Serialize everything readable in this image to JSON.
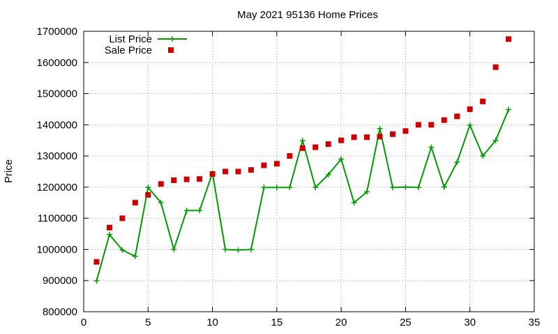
{
  "chart_data": {
    "type": "line",
    "title": "May 2021 95136 Home Prices",
    "xlabel": "",
    "ylabel": "Price",
    "xlim": [
      0,
      35
    ],
    "ylim": [
      800000,
      1700000
    ],
    "x_ticks": [
      0,
      5,
      10,
      15,
      20,
      25,
      30,
      35
    ],
    "y_ticks": [
      800000,
      900000,
      1000000,
      1100000,
      1200000,
      1300000,
      1400000,
      1500000,
      1600000,
      1700000
    ],
    "grid": true,
    "legend_position": "top-left",
    "x": [
      1,
      2,
      3,
      4,
      5,
      6,
      7,
      8,
      9,
      10,
      11,
      12,
      13,
      14,
      15,
      16,
      17,
      18,
      19,
      20,
      21,
      22,
      23,
      24,
      25,
      26,
      27,
      28,
      29,
      30,
      31,
      32,
      33
    ],
    "series": [
      {
        "name": "List Price",
        "kind": "line-points",
        "color": "#009900",
        "marker": "plus",
        "values": [
          899000,
          1048000,
          998000,
          978000,
          1199000,
          1150000,
          1000000,
          1125000,
          1125000,
          1245000,
          1000000,
          998000,
          1000000,
          1199000,
          1199000,
          1199000,
          1349000,
          1199000,
          1240000,
          1290000,
          1150000,
          1185000,
          1388000,
          1199000,
          1200000,
          1199000,
          1328000,
          1200000,
          1280000,
          1399000,
          1300000,
          1350000,
          1449000
        ]
      },
      {
        "name": "Sale Price",
        "kind": "points",
        "color": "#cc0000",
        "marker": "square",
        "values": [
          960000,
          1070000,
          1100000,
          1150000,
          1175000,
          1210000,
          1222000,
          1225000,
          1226000,
          1242000,
          1250000,
          1250000,
          1255000,
          1270000,
          1275000,
          1300000,
          1325000,
          1328000,
          1338000,
          1350000,
          1360000,
          1360000,
          1362000,
          1370000,
          1380000,
          1400000,
          1400000,
          1415000,
          1427000,
          1450000,
          1475000,
          1585000,
          1675000
        ]
      }
    ]
  }
}
